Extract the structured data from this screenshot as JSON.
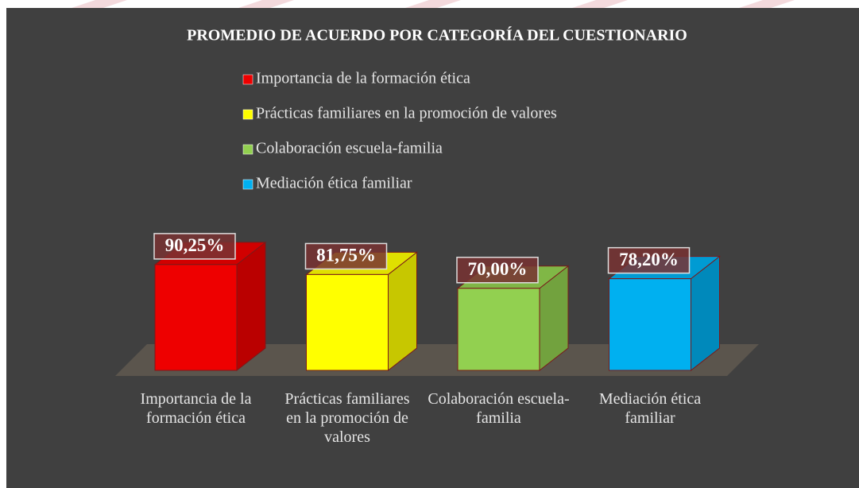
{
  "chart_data": {
    "type": "bar3d",
    "title": "PROMEDIO DE ACUERDO POR CATEGORÍA DEL CUESTIONARIO",
    "categories": [
      "Importancia de la formación ética",
      "Prácticas familiares en la promoción de valores",
      "Colaboración escuela-familia",
      "Mediación ética familiar"
    ],
    "values": [
      90.25,
      81.75,
      70.0,
      78.2
    ],
    "value_labels": [
      "90,25%",
      "81,75%",
      "70,00%",
      "78,20%"
    ],
    "colors": [
      "#ee0000",
      "#ffff00",
      "#92d050",
      "#00b0f0"
    ],
    "legend": true
  }
}
